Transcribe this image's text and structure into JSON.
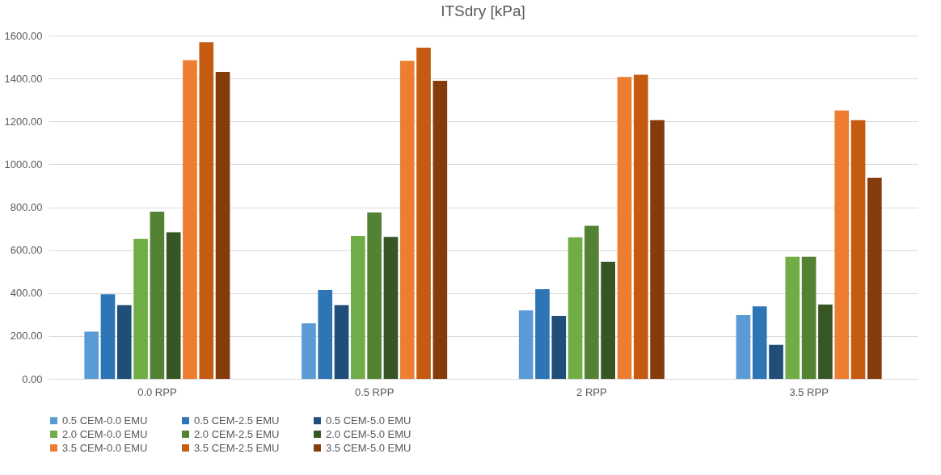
{
  "chart_data": {
    "type": "bar",
    "title": "ITSdry [kPa]",
    "categories": [
      "0.0 RPP",
      "0.5 RPP",
      "2 RPP",
      "3.5 RPP"
    ],
    "series": [
      {
        "name": "0.5 CEM-0.0 EMU",
        "color": "#5b9bd5",
        "values": [
          220,
          259,
          319,
          297
        ]
      },
      {
        "name": "0.5 CEM-2.5 EMU",
        "color": "#2e75b6",
        "values": [
          394,
          414,
          418,
          338
        ]
      },
      {
        "name": "0.5 CEM-5.0 EMU",
        "color": "#1f4e79",
        "values": [
          344,
          344,
          294,
          159
        ]
      },
      {
        "name": "2.0 CEM-0.0 EMU",
        "color": "#70ad47",
        "values": [
          652,
          666,
          660,
          569
        ]
      },
      {
        "name": "2.0 CEM-2.5 EMU",
        "color": "#548235",
        "values": [
          779,
          776,
          713,
          569
        ]
      },
      {
        "name": "2.0 CEM-5.0 EMU",
        "color": "#375623",
        "values": [
          683,
          662,
          546,
          346
        ]
      },
      {
        "name": "3.5 CEM-0.0 EMU",
        "color": "#ed7d31",
        "values": [
          1485,
          1482,
          1407,
          1251
        ]
      },
      {
        "name": "3.5 CEM-2.5 EMU",
        "color": "#c55a11",
        "values": [
          1569,
          1544,
          1417,
          1206
        ]
      },
      {
        "name": "3.5 CEM-5.0 EMU",
        "color": "#843c0c",
        "values": [
          1431,
          1389,
          1206,
          937
        ]
      }
    ],
    "ylim": [
      0,
      1600
    ],
    "yticks": [
      {
        "value": 0,
        "label": "0.00"
      },
      {
        "value": 200,
        "label": "200.00"
      },
      {
        "value": 400,
        "label": "400.00"
      },
      {
        "value": 600,
        "label": "600.00"
      },
      {
        "value": 800,
        "label": "800.00"
      },
      {
        "value": 1000,
        "label": "1000.00"
      },
      {
        "value": 1200,
        "label": "1200.00"
      },
      {
        "value": 1400,
        "label": "1400.00"
      },
      {
        "value": 1600,
        "label": "1600.00"
      }
    ],
    "grid": "y",
    "legend": "bottom"
  }
}
